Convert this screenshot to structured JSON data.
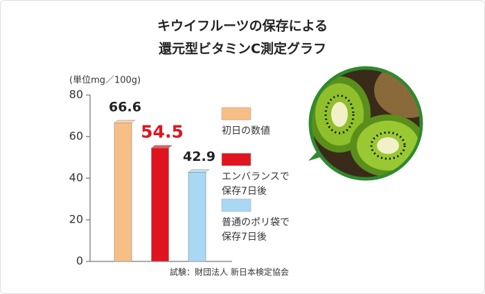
{
  "chart_data": {
    "type": "bar",
    "title": [
      "キウイフルーツの保存による",
      "還元型ビタミンC測定グラフ"
    ],
    "unit_label": "(単位mg／100g)",
    "categories": [
      [
        "初日の数値"
      ],
      [
        "エンバランスで",
        "保存7日後"
      ],
      [
        "普通のポリ袋で",
        "保存7日後"
      ]
    ],
    "values": [
      66.6,
      54.5,
      42.9
    ],
    "colors": [
      "#f7bf86",
      "#e0141e",
      "#a8d8f3"
    ],
    "ylim": [
      0,
      80
    ],
    "yticks": [
      0,
      20,
      40,
      60,
      80
    ],
    "note": "試験：財団法人 新日本検定協会"
  }
}
